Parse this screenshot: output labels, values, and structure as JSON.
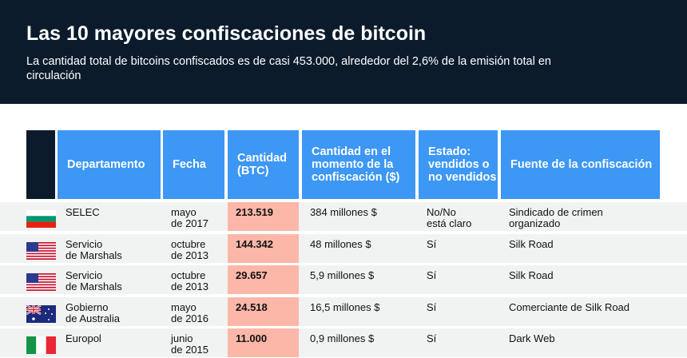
{
  "title": "Las 10 mayores confiscaciones de bitcoin",
  "subtitle": "La cantidad total de bitcoins confiscados es de casi 453.000, alrededor del 2,6% de la emisión total en circulación",
  "colors": {
    "header_bg": "#0b1b2c",
    "column_header": "#3d97f5",
    "highlight": "#fdb7a9",
    "row_bg": "#f1f2f2"
  },
  "columns": [
    "Departamento",
    "Fecha",
    "Cantidad (BTC)",
    "Cantidad en el momento de la confiscación ($)",
    "Estado: vendidos o no vendidos",
    "Fuente de la confiscación"
  ],
  "rows": [
    {
      "flag": "bulgaria-flag",
      "dept": "SELEC",
      "date": "mayo de 2017",
      "btc": "213.519",
      "usd": "384 millones $",
      "status": "No/No está claro",
      "source": "Sindicado de crimen organizado"
    },
    {
      "flag": "usa-flag",
      "dept": "Servicio de Marshals",
      "date": "octubre de 2013",
      "btc": "144.342",
      "usd": "48 millones $",
      "status": "Sí",
      "source": "Silk Road"
    },
    {
      "flag": "usa-flag",
      "dept": "Servicio de Marshals",
      "date": "octubre de 2013",
      "btc": "29.657",
      "usd": "5,9 millones $",
      "status": "Sí",
      "source": "Silk Road"
    },
    {
      "flag": "australia-flag",
      "dept": "Gobierno de Australia",
      "date": "mayo de 2016",
      "btc": "24.518",
      "usd": "16,5 millones $",
      "status": "Sí",
      "source": "Comerciante de Silk Road"
    },
    {
      "flag": "italy-flag",
      "dept": "Europol",
      "date": "junio de 2015",
      "btc": "11.000",
      "usd": "0,9 millones $",
      "status": "Sí",
      "source": "Dark Web"
    }
  ]
}
